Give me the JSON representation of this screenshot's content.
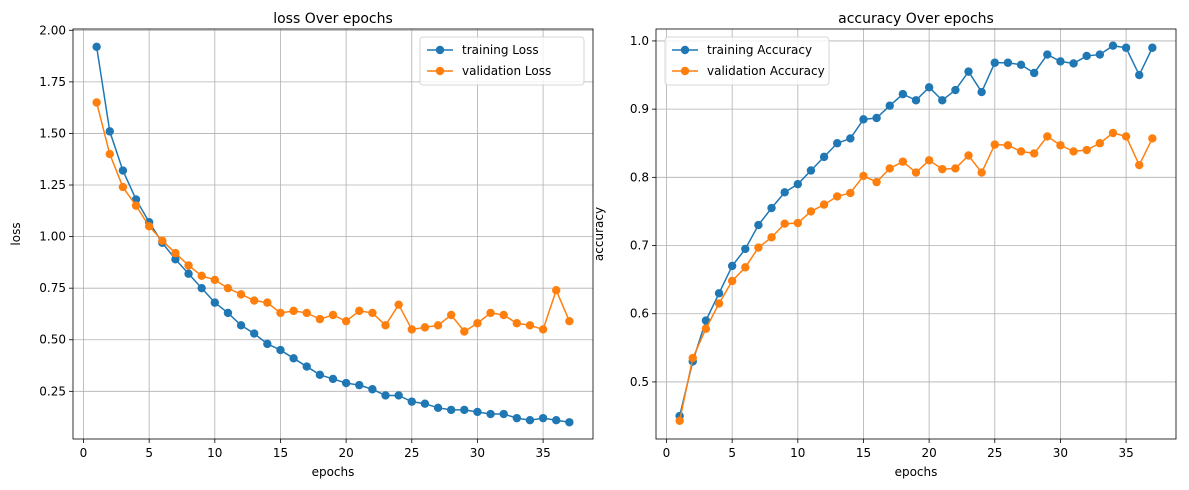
{
  "colors": {
    "training": "#1f77b4",
    "validation": "#ff7f0e",
    "grid": "#b0b0b0",
    "legend_border": "#cccccc"
  },
  "chart_data": [
    {
      "type": "line",
      "title": "loss Over epochs",
      "xlabel": "epochs",
      "ylabel": "loss",
      "xlim": [
        -0.8,
        38.8
      ],
      "ylim": [
        0.0189,
        2.0063
      ],
      "xticks": [
        0,
        5,
        10,
        15,
        20,
        25,
        30,
        35
      ],
      "xtick_labels": [
        "0",
        "5",
        "10",
        "15",
        "20",
        "25",
        "30",
        "35"
      ],
      "yticks": [
        0.25,
        0.5,
        0.75,
        1.0,
        1.25,
        1.5,
        1.75,
        2.0
      ],
      "ytick_labels": [
        "0.25",
        "0.50",
        "0.75",
        "1.00",
        "1.25",
        "1.50",
        "1.75",
        "2.00"
      ],
      "grid": true,
      "legend_position": "upper right",
      "x": [
        1,
        2,
        3,
        4,
        5,
        6,
        7,
        8,
        9,
        10,
        11,
        12,
        13,
        14,
        15,
        16,
        17,
        18,
        19,
        20,
        21,
        22,
        23,
        24,
        25,
        26,
        27,
        28,
        29,
        30,
        31,
        32,
        33,
        34,
        35,
        36,
        37
      ],
      "series": [
        {
          "name": "training Loss",
          "color_key": "training",
          "values": [
            1.92,
            1.51,
            1.32,
            1.18,
            1.07,
            0.97,
            0.89,
            0.82,
            0.75,
            0.68,
            0.63,
            0.57,
            0.53,
            0.48,
            0.45,
            0.41,
            0.37,
            0.33,
            0.31,
            0.29,
            0.28,
            0.26,
            0.23,
            0.23,
            0.2,
            0.19,
            0.17,
            0.16,
            0.16,
            0.15,
            0.14,
            0.14,
            0.12,
            0.11,
            0.12,
            0.11,
            0.1
          ]
        },
        {
          "name": "validation Loss",
          "color_key": "validation",
          "values": [
            1.65,
            1.4,
            1.24,
            1.15,
            1.05,
            0.98,
            0.92,
            0.86,
            0.81,
            0.79,
            0.75,
            0.72,
            0.69,
            0.68,
            0.63,
            0.64,
            0.63,
            0.6,
            0.62,
            0.59,
            0.64,
            0.63,
            0.57,
            0.67,
            0.55,
            0.56,
            0.57,
            0.62,
            0.54,
            0.58,
            0.63,
            0.62,
            0.58,
            0.57,
            0.55,
            0.74,
            0.59
          ]
        }
      ]
    },
    {
      "type": "line",
      "title": "accuracy Over epochs",
      "xlabel": "epochs",
      "ylabel": "accuracy",
      "xlim": [
        -0.8,
        38.8
      ],
      "ylim": [
        0.4163,
        1.0175
      ],
      "xticks": [
        0,
        5,
        10,
        15,
        20,
        25,
        30,
        35
      ],
      "xtick_labels": [
        "0",
        "5",
        "10",
        "15",
        "20",
        "25",
        "30",
        "35"
      ],
      "yticks": [
        0.5,
        0.6,
        0.7,
        0.8,
        0.9,
        1.0
      ],
      "ytick_labels": [
        "0.5",
        "0.6",
        "0.7",
        "0.8",
        "0.9",
        "1.0"
      ],
      "grid": true,
      "legend_position": "upper left",
      "x": [
        1,
        2,
        3,
        4,
        5,
        6,
        7,
        8,
        9,
        10,
        11,
        12,
        13,
        14,
        15,
        16,
        17,
        18,
        19,
        20,
        21,
        22,
        23,
        24,
        25,
        26,
        27,
        28,
        29,
        30,
        31,
        32,
        33,
        34,
        35,
        36,
        37
      ],
      "series": [
        {
          "name": "training Accuracy",
          "color_key": "training",
          "values": [
            0.45,
            0.53,
            0.59,
            0.63,
            0.67,
            0.695,
            0.73,
            0.755,
            0.778,
            0.79,
            0.81,
            0.83,
            0.85,
            0.857,
            0.885,
            0.887,
            0.905,
            0.922,
            0.913,
            0.932,
            0.913,
            0.928,
            0.955,
            0.925,
            0.968,
            0.968,
            0.965,
            0.953,
            0.98,
            0.97,
            0.967,
            0.978,
            0.98,
            0.993,
            0.99,
            0.95,
            0.99
          ]
        },
        {
          "name": "validation Accuracy",
          "color_key": "validation",
          "values": [
            0.443,
            0.535,
            0.578,
            0.615,
            0.648,
            0.668,
            0.697,
            0.712,
            0.732,
            0.733,
            0.75,
            0.76,
            0.772,
            0.777,
            0.802,
            0.793,
            0.813,
            0.823,
            0.807,
            0.825,
            0.812,
            0.813,
            0.832,
            0.807,
            0.848,
            0.847,
            0.838,
            0.835,
            0.86,
            0.847,
            0.838,
            0.84,
            0.85,
            0.865,
            0.86,
            0.818,
            0.857
          ]
        }
      ]
    }
  ]
}
